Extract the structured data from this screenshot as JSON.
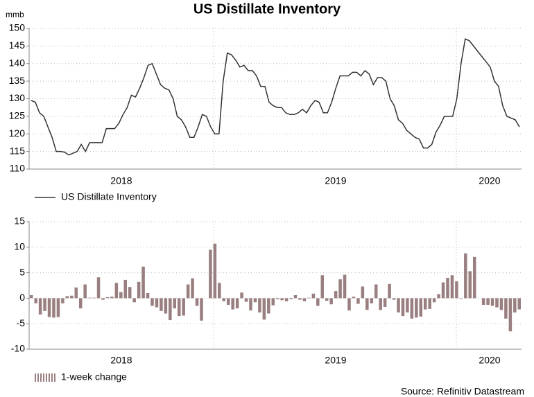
{
  "chart_data": [
    {
      "type": "line",
      "title": "US Distillate Inventory",
      "y_unit": "mmb",
      "x_labels": [
        "2018",
        "2019",
        "2020"
      ],
      "series": [
        {
          "name": "US Distillate Inventory",
          "color": "#333333",
          "values": [
            129.5,
            129,
            126,
            125,
            122,
            119,
            115,
            115,
            114.8,
            114,
            114.5,
            115,
            117,
            115,
            117.5,
            117.5,
            117.5,
            117.5,
            121.5,
            121.5,
            121.5,
            123,
            125.5,
            127.5,
            131,
            130.5,
            133,
            136,
            139.5,
            140,
            137,
            134,
            133,
            132.5,
            130,
            125,
            124,
            122,
            119,
            119,
            122,
            125.5,
            125,
            122,
            120,
            120,
            135,
            143,
            142.5,
            141,
            139,
            139.5,
            138,
            138,
            136.5,
            133.5,
            133.5,
            129,
            128,
            127.5,
            127.5,
            126,
            125.5,
            125.5,
            126,
            127,
            126,
            128,
            129.5,
            129,
            126,
            126,
            129,
            133,
            136.5,
            136.5,
            136.5,
            137.5,
            137.5,
            136.5,
            138,
            137,
            134,
            136,
            136,
            135,
            130,
            128,
            124,
            123,
            121,
            120,
            119,
            118.5,
            116,
            116,
            117,
            120.5,
            122.5,
            125,
            125,
            125,
            130,
            140,
            147,
            146.5,
            145,
            143.5,
            142,
            140.5,
            139,
            135,
            133.5,
            128,
            125,
            124.5,
            124,
            122
          ]
        }
      ],
      "ylim": [
        110,
        150
      ],
      "yticks": [
        110,
        115,
        120,
        125,
        130,
        135,
        140,
        145,
        150
      ],
      "grid": true
    },
    {
      "type": "bar",
      "x_labels": [
        "2018",
        "2019",
        "2020"
      ],
      "series": [
        {
          "name": "1-week change",
          "color": "#9a7f80",
          "values": [
            0.6,
            -1,
            -3.2,
            -2.5,
            -3.7,
            -3.8,
            -3.7,
            -1,
            0.4,
            0.5,
            2.1,
            -2,
            2.7,
            0.1,
            0.1,
            4.1,
            -0.3,
            0.2,
            0.3,
            3,
            1.2,
            3.6,
            2.2,
            -0.8,
            3.2,
            6.2,
            1,
            -1.5,
            -1.8,
            -2.5,
            -3,
            -4.3,
            -2,
            -3.5,
            -3.4,
            2.7,
            3.9,
            -1.5,
            -4.4,
            0,
            9.5,
            10.7,
            3,
            -0.6,
            -1.3,
            -2.2,
            -2,
            1.1,
            -0.7,
            -2.4,
            -0.8,
            -2.8,
            -4.2,
            -3,
            -1.4,
            -0.2,
            -0.4,
            -0.6,
            -0.2,
            0.6,
            -0.3,
            -0.6,
            0.1,
            0.9,
            -1.5,
            4.5,
            -0.5,
            -1.2,
            1.4,
            3.7,
            4.6,
            -2.4,
            0.3,
            -1.1,
            2.3,
            -2.3,
            -1,
            2.7,
            -2.3,
            -1.7,
            2.8,
            -0.3,
            -2.8,
            -3.5,
            -2.8,
            -4,
            -3.8,
            -3.6,
            -2.2,
            -2.1,
            -0.8,
            0.8,
            3.1,
            4,
            4.5,
            3.3,
            -0.1,
            8.8,
            5.3,
            8.1,
            0,
            -1.3,
            -1.3,
            -1.5,
            -1.8,
            -2.3,
            -4,
            -6.5,
            -2.8,
            -2.2
          ]
        }
      ],
      "ylim": [
        -10,
        15
      ],
      "yticks": [
        -10,
        -5,
        0,
        5,
        10,
        15
      ],
      "grid": true
    }
  ],
  "source": "Source: Refinitiv Datastream"
}
